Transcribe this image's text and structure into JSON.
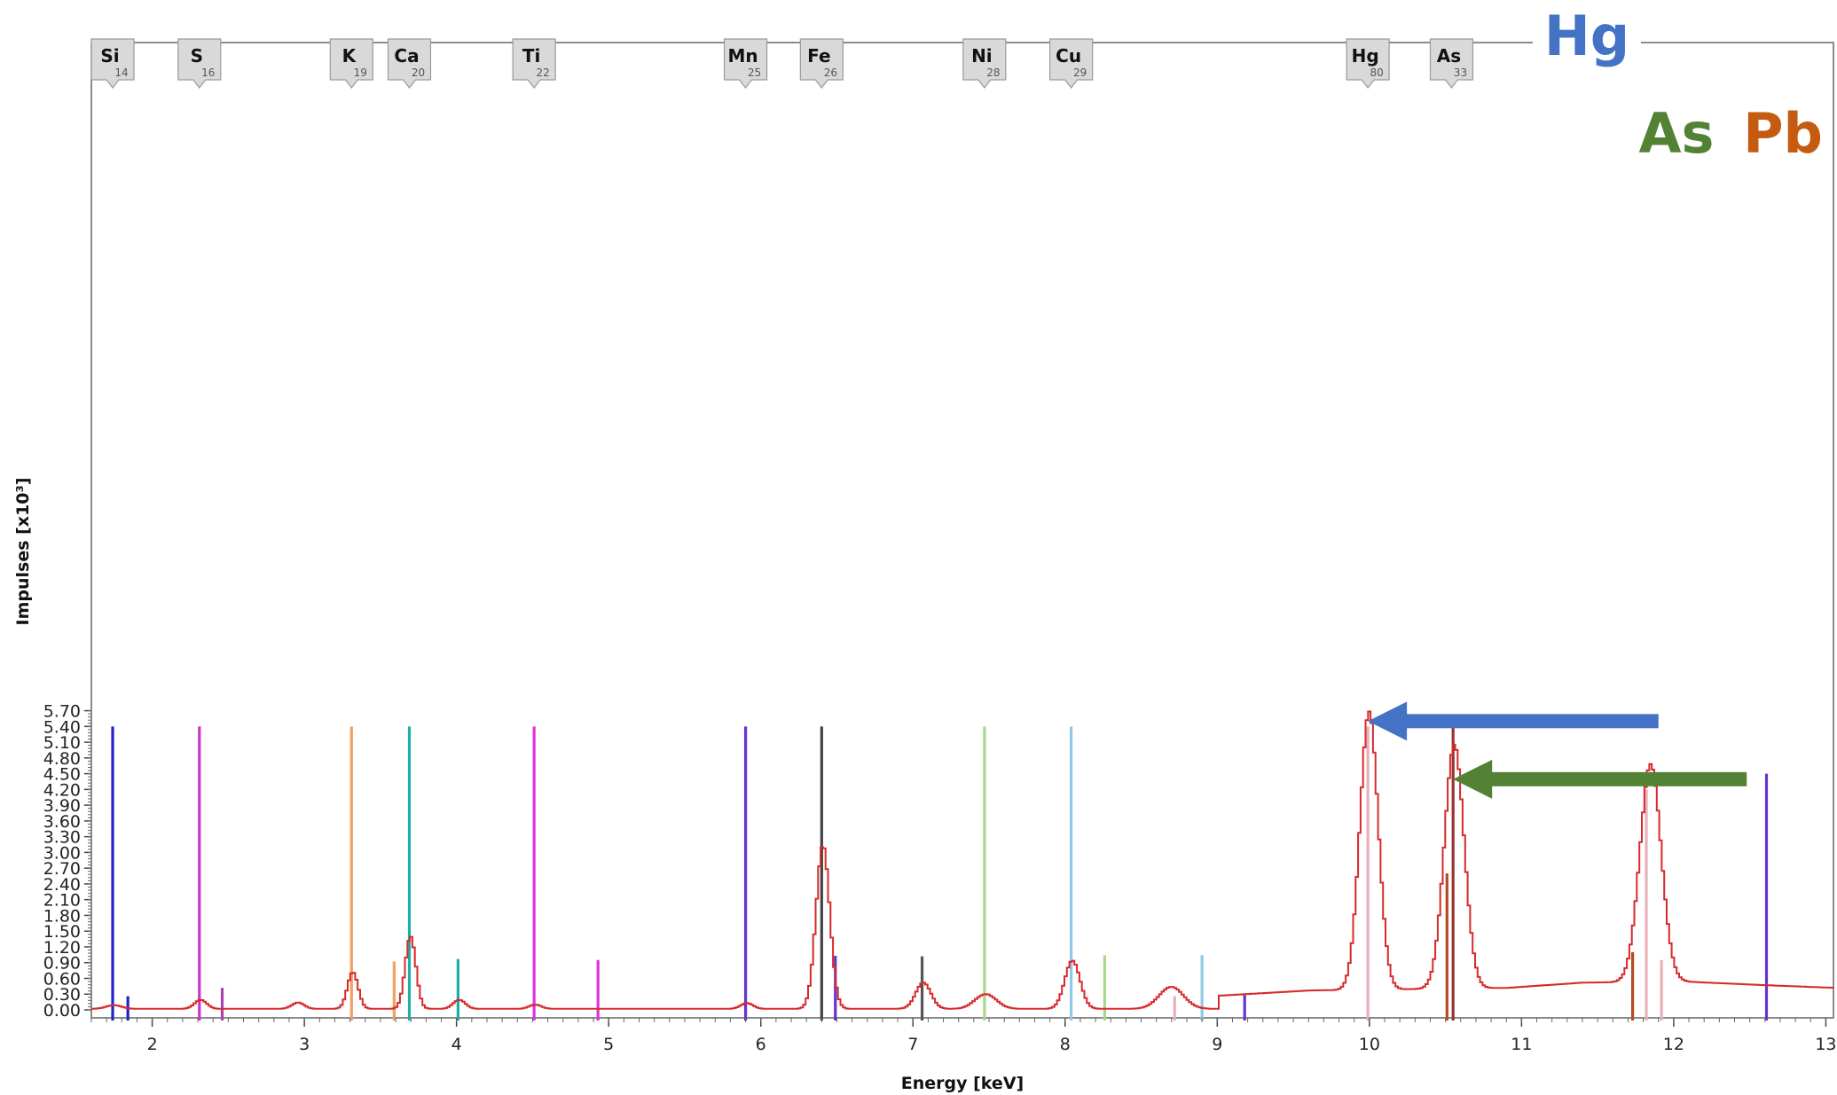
{
  "chart_data": {
    "type": "line",
    "xlabel": "Energy [keV]",
    "ylabel": "Impulses [x10³]",
    "xlim": [
      1.6,
      13.05
    ],
    "ylim": [
      0,
      5.7
    ],
    "x_ticks": [
      "2",
      "3",
      "4",
      "5",
      "6",
      "7",
      "8",
      "9",
      "10",
      "11",
      "12",
      "13"
    ],
    "y_ticks": [
      "0.00",
      "0.30",
      "0.60",
      "0.90",
      "1.20",
      "1.50",
      "1.80",
      "2.10",
      "2.40",
      "2.70",
      "3.00",
      "3.30",
      "3.60",
      "3.90",
      "4.20",
      "4.50",
      "4.80",
      "5.10",
      "5.40",
      "5.70"
    ],
    "spectrum": {
      "color": "#d62a2a",
      "baseline": 0.02,
      "tail": [
        [
          9.0,
          0.25
        ],
        [
          9.6,
          0.35
        ],
        [
          10.9,
          0.4
        ],
        [
          11.4,
          0.5
        ],
        [
          12.05,
          0.52
        ],
        [
          12.6,
          0.45
        ],
        [
          13.05,
          0.4
        ]
      ],
      "peaks": [
        {
          "x": 1.74,
          "h": 0.07,
          "w": 0.05
        },
        {
          "x": 2.31,
          "h": 0.17,
          "w": 0.04
        },
        {
          "x": 2.95,
          "h": 0.12,
          "w": 0.04
        },
        {
          "x": 3.31,
          "h": 0.7,
          "w": 0.035
        },
        {
          "x": 3.69,
          "h": 1.38,
          "w": 0.035
        },
        {
          "x": 4.01,
          "h": 0.17,
          "w": 0.04
        },
        {
          "x": 4.51,
          "h": 0.08,
          "w": 0.04
        },
        {
          "x": 5.9,
          "h": 0.11,
          "w": 0.04
        },
        {
          "x": 6.4,
          "h": 3.12,
          "w": 0.045
        },
        {
          "x": 7.06,
          "h": 0.5,
          "w": 0.05
        },
        {
          "x": 7.47,
          "h": 0.28,
          "w": 0.07
        },
        {
          "x": 8.04,
          "h": 0.92,
          "w": 0.05
        },
        {
          "x": 8.69,
          "h": 0.42,
          "w": 0.08
        },
        {
          "x": 9.99,
          "h": 5.3,
          "w": 0.06
        },
        {
          "x": 10.55,
          "h": 4.65,
          "w": 0.065
        },
        {
          "x": 11.84,
          "h": 4.15,
          "w": 0.07
        }
      ]
    },
    "elements": [
      {
        "symbol": "Si",
        "z": "14",
        "x": 1.74,
        "color": "#2222cc"
      },
      {
        "symbol": "S",
        "z": "16",
        "x": 2.31,
        "color": "#cc33cc"
      },
      {
        "symbol": "K",
        "z": "19",
        "x": 3.31,
        "color": "#f0a060"
      },
      {
        "symbol": "Ca",
        "z": "20",
        "x": 3.69,
        "color": "#1ab0a8"
      },
      {
        "symbol": "Ti",
        "z": "22",
        "x": 4.51,
        "color": "#dd33dd"
      },
      {
        "symbol": "Mn",
        "z": "25",
        "x": 5.9,
        "color": "#6633cc"
      },
      {
        "symbol": "Fe",
        "z": "26",
        "x": 6.4,
        "color": "#444444"
      },
      {
        "symbol": "Ni",
        "z": "28",
        "x": 7.47,
        "color": "#a8d890"
      },
      {
        "symbol": "Cu",
        "z": "29",
        "x": 8.04,
        "color": "#90c8e8"
      },
      {
        "symbol": "Hg",
        "z": "80",
        "x": 9.99,
        "color": "#e8b0b8"
      },
      {
        "symbol": "As",
        "z": "33",
        "x": 10.54,
        "color": "#993333"
      }
    ],
    "marker_lines": [
      {
        "x": 1.74,
        "top": 5.4,
        "color": "#2222cc"
      },
      {
        "x": 1.84,
        "top": 0.26,
        "color": "#2222cc"
      },
      {
        "x": 2.31,
        "top": 5.4,
        "color": "#cc33cc"
      },
      {
        "x": 2.46,
        "top": 0.42,
        "color": "#aa44aa"
      },
      {
        "x": 3.31,
        "top": 5.4,
        "color": "#f0a060"
      },
      {
        "x": 3.59,
        "top": 0.92,
        "color": "#f0a060"
      },
      {
        "x": 3.69,
        "top": 5.4,
        "color": "#1ab0a8"
      },
      {
        "x": 4.01,
        "top": 0.97,
        "color": "#1ab0a8"
      },
      {
        "x": 4.51,
        "top": 5.4,
        "color": "#dd33dd"
      },
      {
        "x": 4.93,
        "top": 0.95,
        "color": "#dd33dd"
      },
      {
        "x": 5.9,
        "top": 5.4,
        "color": "#6633cc"
      },
      {
        "x": 6.4,
        "top": 5.4,
        "color": "#444444"
      },
      {
        "x": 6.49,
        "top": 1.03,
        "color": "#6633cc"
      },
      {
        "x": 7.06,
        "top": 1.02,
        "color": "#555555"
      },
      {
        "x": 7.47,
        "top": 5.4,
        "color": "#a8d890"
      },
      {
        "x": 8.04,
        "top": 5.4,
        "color": "#90c8e8"
      },
      {
        "x": 8.26,
        "top": 1.04,
        "color": "#a8d890"
      },
      {
        "x": 8.72,
        "top": 0.26,
        "color": "#e8b0b8"
      },
      {
        "x": 8.9,
        "top": 1.04,
        "color": "#90c8e8"
      },
      {
        "x": 9.18,
        "top": 0.28,
        "color": "#6633cc"
      },
      {
        "x": 9.99,
        "top": 5.4,
        "color": "#e8b0b8"
      },
      {
        "x": 10.51,
        "top": 2.6,
        "color": "#b84a20"
      },
      {
        "x": 10.55,
        "top": 5.4,
        "color": "#993333"
      },
      {
        "x": 11.73,
        "top": 1.1,
        "color": "#b84a20"
      },
      {
        "x": 11.82,
        "top": 4.2,
        "color": "#e8b0b8"
      },
      {
        "x": 11.92,
        "top": 0.95,
        "color": "#e8b0b8"
      },
      {
        "x": 12.61,
        "top": 4.5,
        "color": "#6633cc"
      }
    ],
    "annotations": [
      {
        "label": "Hg",
        "color": "#4472c4",
        "arrow_to_x": 9.99,
        "arrow_y": 5.4,
        "arrow_from_x": 11.9
      },
      {
        "label": "As",
        "color": "#548235",
        "arrow_to_x": 10.55,
        "arrow_y": 4.8,
        "arrow_from_x": 12.48
      },
      {
        "label": "Pb",
        "color": "#c55a11"
      }
    ]
  }
}
